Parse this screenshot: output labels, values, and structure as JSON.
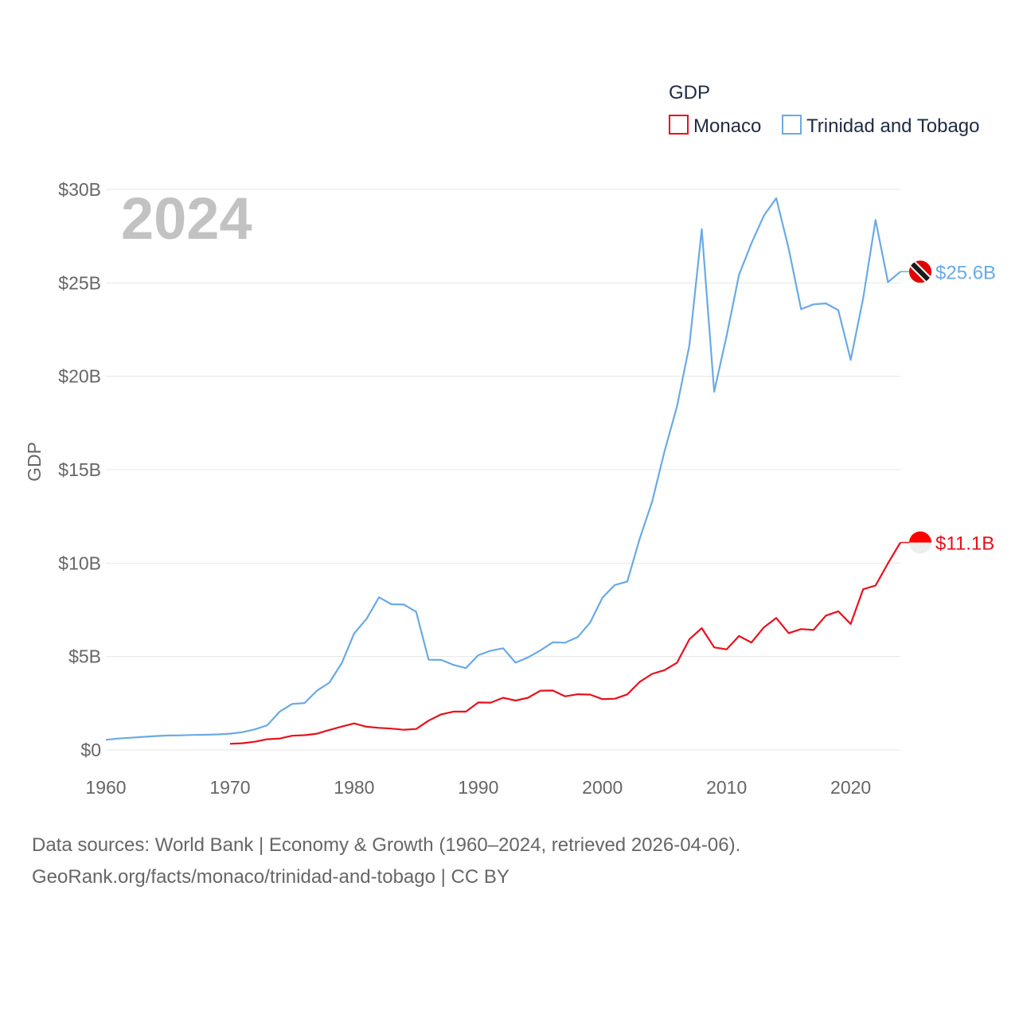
{
  "chart_data": {
    "type": "line",
    "title": "GDP",
    "ylabel": "GDP",
    "xlabel": "",
    "year_watermark": "2024",
    "xlim": [
      1960,
      2024
    ],
    "ylim": [
      0,
      30000000000
    ],
    "x_ticks": [
      {
        "value": 1960,
        "label": "1960"
      },
      {
        "value": 1970,
        "label": "1970"
      },
      {
        "value": 1980,
        "label": "1980"
      },
      {
        "value": 1990,
        "label": "1990"
      },
      {
        "value": 2000,
        "label": "2000"
      },
      {
        "value": 2010,
        "label": "2010"
      },
      {
        "value": 2020,
        "label": "2020"
      }
    ],
    "y_ticks": [
      {
        "value": 0,
        "label": "$0"
      },
      {
        "value": 5000000000,
        "label": "$5B"
      },
      {
        "value": 10000000000,
        "label": "$10B"
      },
      {
        "value": 15000000000,
        "label": "$15B"
      },
      {
        "value": 20000000000,
        "label": "$20B"
      },
      {
        "value": 25000000000,
        "label": "$25B"
      },
      {
        "value": 30000000000,
        "label": "$30B"
      }
    ],
    "grid": true,
    "legend_position": "top-right",
    "series": [
      {
        "name": "Monaco",
        "color": "#e8101e",
        "end_label": "$11.1B",
        "flag_colors": [
          "#ff0000",
          "#eeeeee"
        ],
        "x": [
          1970,
          1971,
          1972,
          1973,
          1974,
          1975,
          1976,
          1977,
          1978,
          1979,
          1980,
          1981,
          1982,
          1983,
          1984,
          1985,
          1986,
          1987,
          1988,
          1989,
          1990,
          1991,
          1992,
          1993,
          1994,
          1995,
          1996,
          1997,
          1998,
          1999,
          2000,
          2001,
          2002,
          2003,
          2004,
          2005,
          2006,
          2007,
          2008,
          2009,
          2010,
          2011,
          2012,
          2013,
          2014,
          2015,
          2016,
          2017,
          2018,
          2019,
          2020,
          2021,
          2022,
          2023,
          2024
        ],
        "values": [
          330000000,
          360000000,
          440000000,
          570000000,
          610000000,
          760000000,
          790000000,
          870000000,
          1070000000,
          1250000000,
          1420000000,
          1240000000,
          1180000000,
          1140000000,
          1080000000,
          1120000000,
          1570000000,
          1900000000,
          2050000000,
          2050000000,
          2540000000,
          2530000000,
          2790000000,
          2640000000,
          2790000000,
          3170000000,
          3180000000,
          2870000000,
          2980000000,
          2960000000,
          2720000000,
          2740000000,
          2970000000,
          3640000000,
          4070000000,
          4270000000,
          4660000000,
          5920000000,
          6520000000,
          5490000000,
          5380000000,
          6100000000,
          5750000000,
          6560000000,
          7060000000,
          6250000000,
          6470000000,
          6420000000,
          7190000000,
          7420000000,
          6740000000,
          8600000000,
          8800000000,
          9990000000,
          11100000000
        ]
      },
      {
        "name": "Trinidad and Tobago",
        "color": "#6aaae4",
        "end_label": "$25.6B",
        "flag_colors": [
          "#e00000",
          "#ffffff",
          "#1a1a1a"
        ],
        "x": [
          1960,
          1961,
          1962,
          1963,
          1964,
          1965,
          1966,
          1967,
          1968,
          1969,
          1970,
          1971,
          1972,
          1973,
          1974,
          1975,
          1976,
          1977,
          1978,
          1979,
          1980,
          1981,
          1982,
          1983,
          1984,
          1985,
          1986,
          1987,
          1988,
          1989,
          1990,
          1991,
          1992,
          1993,
          1994,
          1995,
          1996,
          1997,
          1998,
          1999,
          2000,
          2001,
          2002,
          2003,
          2004,
          2005,
          2006,
          2007,
          2008,
          2009,
          2010,
          2011,
          2012,
          2013,
          2014,
          2015,
          2016,
          2017,
          2018,
          2019,
          2020,
          2021,
          2022,
          2023,
          2024
        ],
        "values": [
          540000000,
          610000000,
          650000000,
          700000000,
          740000000,
          770000000,
          780000000,
          800000000,
          810000000,
          830000000,
          870000000,
          950000000,
          1100000000,
          1320000000,
          2050000000,
          2460000000,
          2510000000,
          3170000000,
          3600000000,
          4650000000,
          6240000000,
          7020000000,
          8170000000,
          7800000000,
          7780000000,
          7390000000,
          4830000000,
          4820000000,
          4550000000,
          4380000000,
          5070000000,
          5310000000,
          5440000000,
          4670000000,
          4950000000,
          5330000000,
          5760000000,
          5740000000,
          6040000000,
          6810000000,
          8150000000,
          8830000000,
          9010000000,
          11300000000,
          13280000000,
          15980000000,
          18370000000,
          21640000000,
          27870000000,
          19170000000,
          22160000000,
          25430000000,
          27120000000,
          28600000000,
          29530000000,
          26830000000,
          23590000000,
          23850000000,
          23900000000,
          23540000000,
          20880000000,
          24160000000,
          28370000000,
          25040000000,
          25600000000
        ]
      }
    ]
  },
  "footer": {
    "sources": "Data sources: World Bank | Economy & Growth (1960–2024, retrieved 2026-04-06).",
    "credit": "GeoRank.org/facts/monaco/trinidad-and-tobago | CC BY"
  }
}
